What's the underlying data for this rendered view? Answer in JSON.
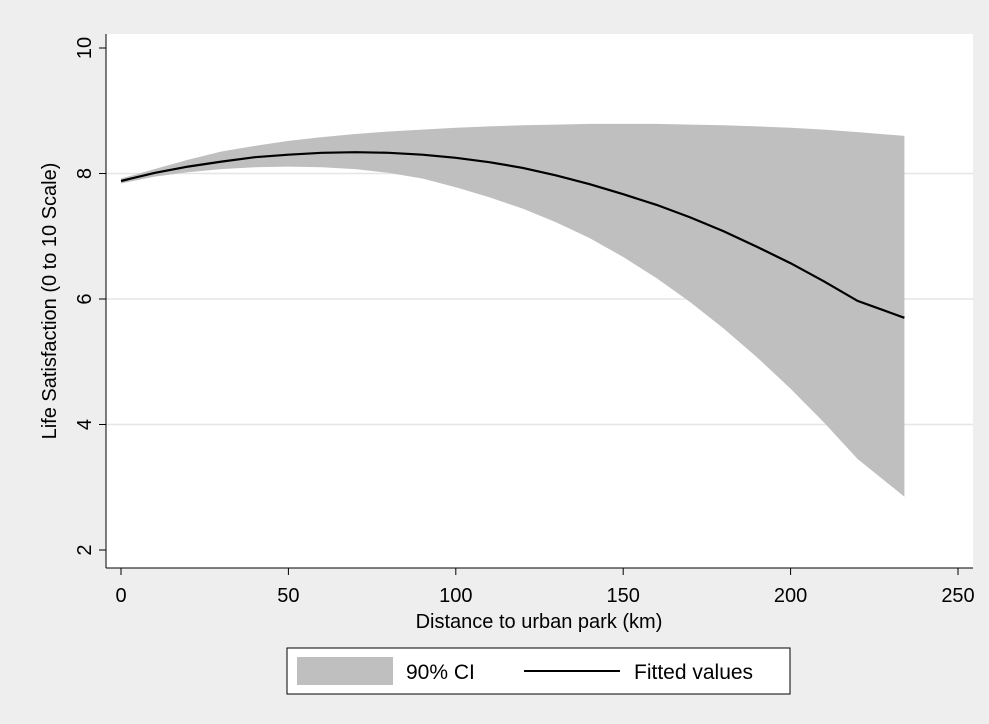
{
  "chart_data": {
    "type": "area",
    "title": "",
    "xlabel": "Distance to urban park (km)",
    "ylabel": "Life Satisfaction (0 to 10 Scale)",
    "xlim": [
      0,
      250
    ],
    "ylim": [
      2,
      10
    ],
    "x_ticks": [
      0,
      50,
      100,
      150,
      200,
      250
    ],
    "y_ticks": [
      2,
      4,
      6,
      8,
      10
    ],
    "grid": "horizontal",
    "legend": {
      "placement": "bottom",
      "entries": [
        "90% CI",
        "Fitted values"
      ]
    },
    "series": [
      {
        "name": "90% CI",
        "kind": "band",
        "color": "#bfbfbf",
        "x": [
          0,
          10,
          20,
          30,
          40,
          50,
          60,
          70,
          80,
          90,
          100,
          110,
          120,
          130,
          140,
          150,
          160,
          170,
          180,
          190,
          200,
          210,
          220,
          234
        ],
        "lower": [
          7.84,
          7.95,
          8.02,
          8.07,
          8.1,
          8.11,
          8.1,
          8.07,
          8.01,
          7.92,
          7.78,
          7.62,
          7.44,
          7.22,
          6.97,
          6.67,
          6.33,
          5.95,
          5.53,
          5.07,
          4.57,
          4.03,
          3.45,
          2.85
        ],
        "upper": [
          7.92,
          8.07,
          8.22,
          8.35,
          8.44,
          8.52,
          8.58,
          8.63,
          8.67,
          8.7,
          8.73,
          8.75,
          8.77,
          8.78,
          8.79,
          8.79,
          8.79,
          8.78,
          8.77,
          8.75,
          8.73,
          8.7,
          8.66,
          8.6
        ]
      },
      {
        "name": "Fitted values",
        "kind": "line",
        "color": "#000000",
        "x": [
          0,
          10,
          20,
          30,
          40,
          50,
          60,
          70,
          80,
          90,
          100,
          110,
          120,
          130,
          140,
          150,
          160,
          170,
          180,
          190,
          200,
          210,
          220,
          234
        ],
        "y": [
          7.88,
          8.01,
          8.11,
          8.19,
          8.26,
          8.3,
          8.33,
          8.34,
          8.33,
          8.3,
          8.25,
          8.18,
          8.09,
          7.97,
          7.83,
          7.67,
          7.5,
          7.3,
          7.08,
          6.83,
          6.57,
          6.28,
          5.97,
          5.7
        ]
      }
    ]
  }
}
